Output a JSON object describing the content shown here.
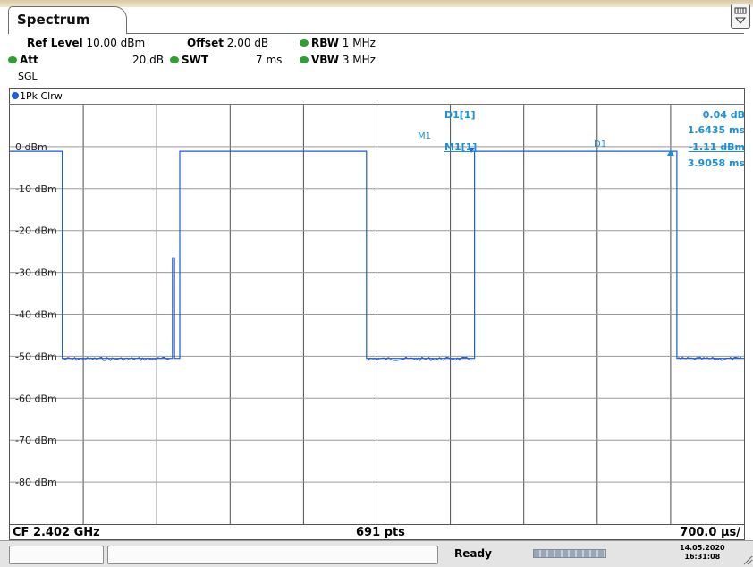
{
  "tab": {
    "title": "Spectrum"
  },
  "settings": {
    "ref_level_label": "Ref Level",
    "ref_level_value": "10.00 dBm",
    "offset_label": "Offset",
    "offset_value": "2.00 dB",
    "rbw_label": "RBW",
    "rbw_value": "1 MHz",
    "att_label": "Att",
    "att_value": "20 dB",
    "swt_label": "SWT",
    "swt_value": "7 ms",
    "vbw_label": "VBW",
    "vbw_value": "3 MHz",
    "mode": "SGL",
    "indicator_color": "#2ea02e"
  },
  "trace": {
    "label": "1Pk Clrw",
    "color": "#1e5bd8"
  },
  "markers": {
    "m1_label": "M1",
    "d1_label": "D1",
    "d1_readout_title": "D1[1]",
    "d1_readout_value": "0.04 dB",
    "d1_readout_time": "1.6435 ms",
    "m1_readout_title": "M1[1]",
    "m1_readout_value": "-1.11 dBm",
    "m1_readout_time": "3.9058 ms",
    "readout_color": "#1c8fd6"
  },
  "chart_data": {
    "type": "line",
    "ylim": [
      -90,
      10
    ],
    "y_tick_labels": [
      "0 dBm",
      "-10 dBm",
      "-20 dBm",
      "-30 dBm",
      "-40 dBm",
      "-50 dBm",
      "-60 dBm",
      "-70 dBm",
      "-80 dBm"
    ],
    "x_range_ms": [
      0,
      7
    ],
    "series": [
      {
        "x_ms": [
          0,
          0.5,
          0.5,
          1.55,
          1.55,
          1.57,
          1.57,
          1.62,
          1.62,
          3.4,
          3.4,
          4.43,
          4.43,
          6.36,
          6.36,
          7.0
        ],
        "y_dbm": [
          -1.1,
          -1.1,
          -50.5,
          -50.5,
          -26.5,
          -26.5,
          -50.5,
          -50.5,
          -1.1,
          -1.1,
          -50.5,
          -50.5,
          -1.1,
          -1.1,
          -50.5,
          -50.5
        ]
      }
    ],
    "marker_positions_ms": {
      "M1": 4.4,
      "D1": 6.3
    }
  },
  "footer": {
    "center_freq": "CF 2.402 GHz",
    "points": "691 pts",
    "span_per_div": "700.0 µs/"
  },
  "status": {
    "state": "Ready",
    "date": "14.05.2020",
    "time": "16:31:08"
  }
}
